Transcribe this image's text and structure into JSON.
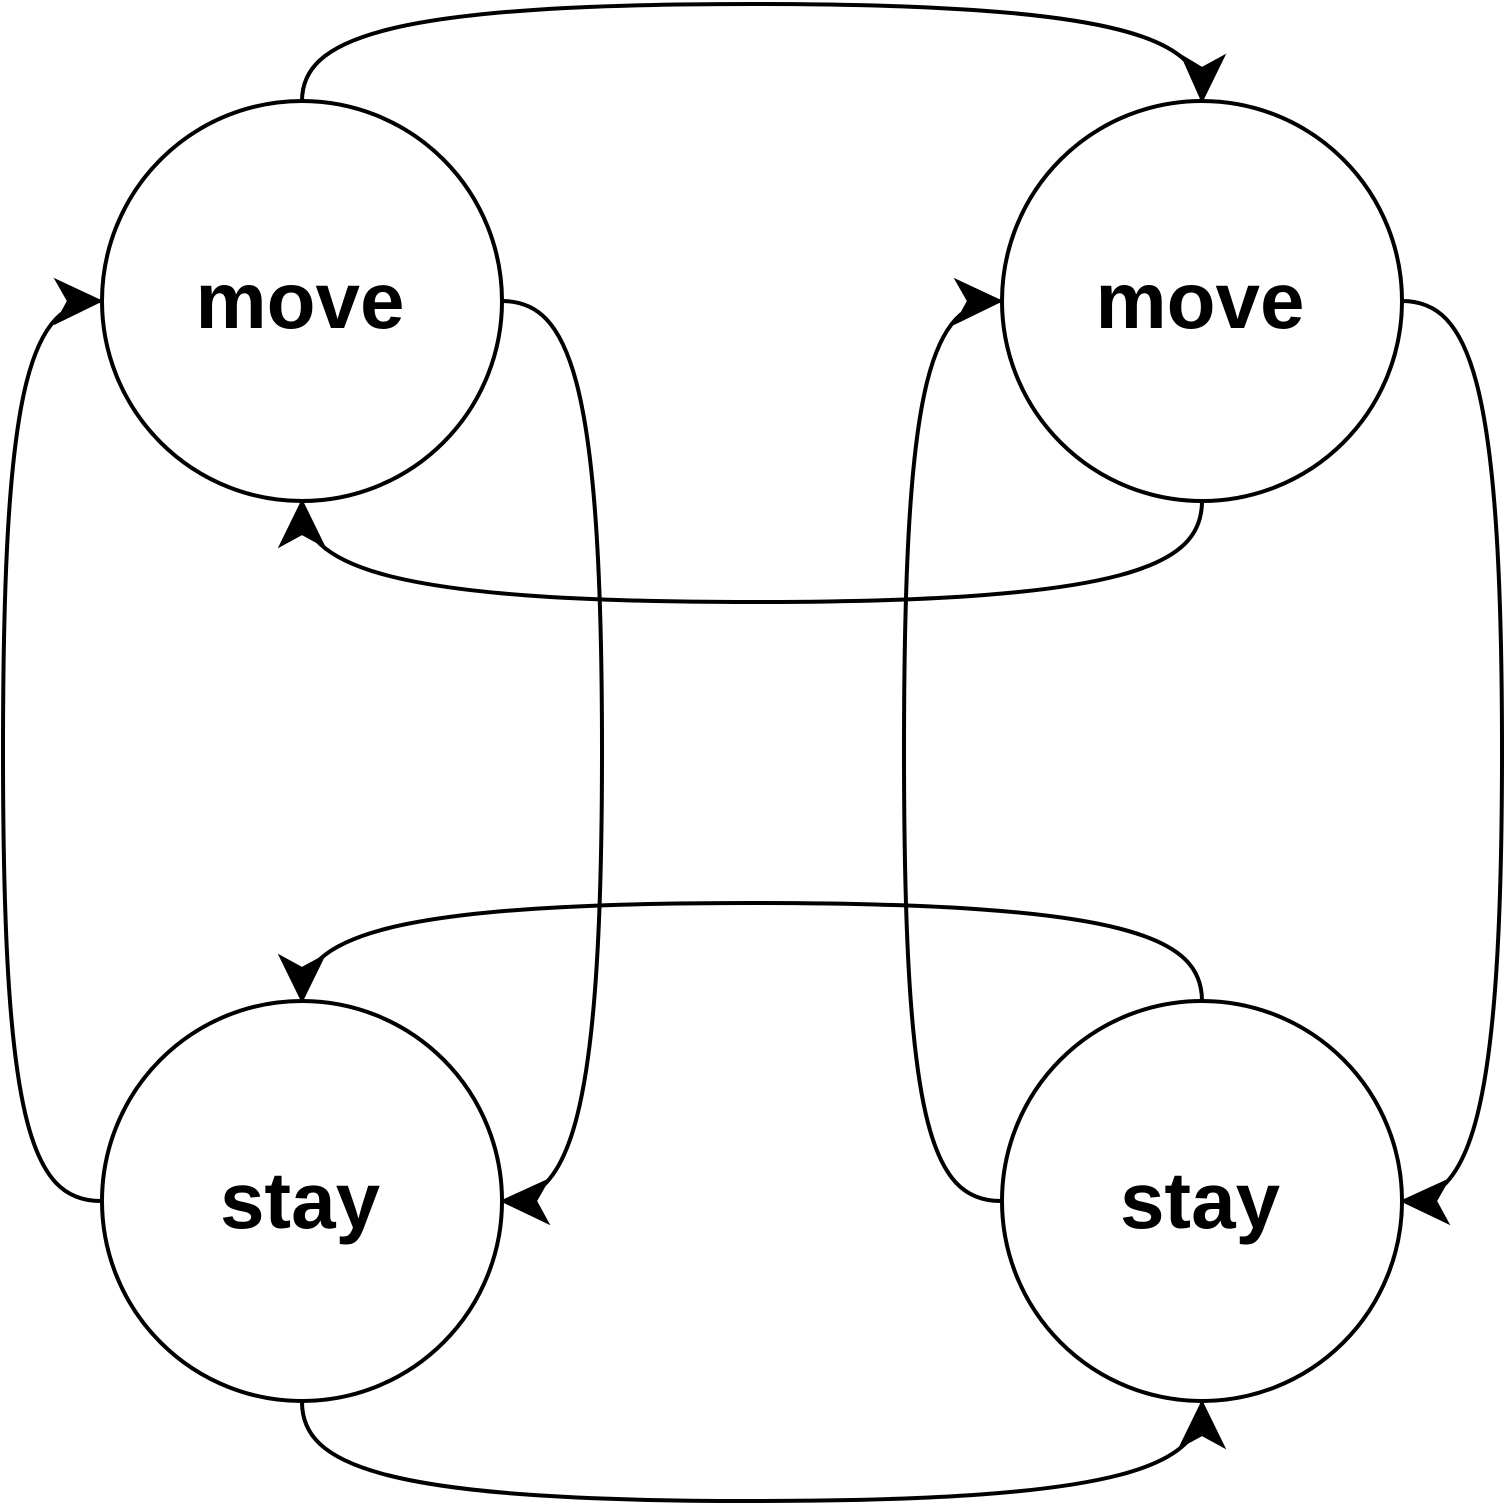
{
  "diagram": {
    "nodes": [
      {
        "id": "top-left",
        "label": "move"
      },
      {
        "id": "top-right",
        "label": "move"
      },
      {
        "id": "bottom-left",
        "label": "stay"
      },
      {
        "id": "bottom-right",
        "label": "stay"
      }
    ],
    "edges": [
      {
        "from": "top-left",
        "to": "top-right"
      },
      {
        "from": "top-right",
        "to": "top-left"
      },
      {
        "from": "top-left",
        "to": "bottom-left"
      },
      {
        "from": "bottom-left",
        "to": "top-left"
      },
      {
        "from": "top-right",
        "to": "bottom-right"
      },
      {
        "from": "bottom-right",
        "to": "top-right"
      },
      {
        "from": "bottom-left",
        "to": "bottom-right"
      },
      {
        "from": "bottom-right",
        "to": "bottom-left"
      }
    ],
    "colors": {
      "stroke": "#000000",
      "background": "#ffffff"
    }
  }
}
